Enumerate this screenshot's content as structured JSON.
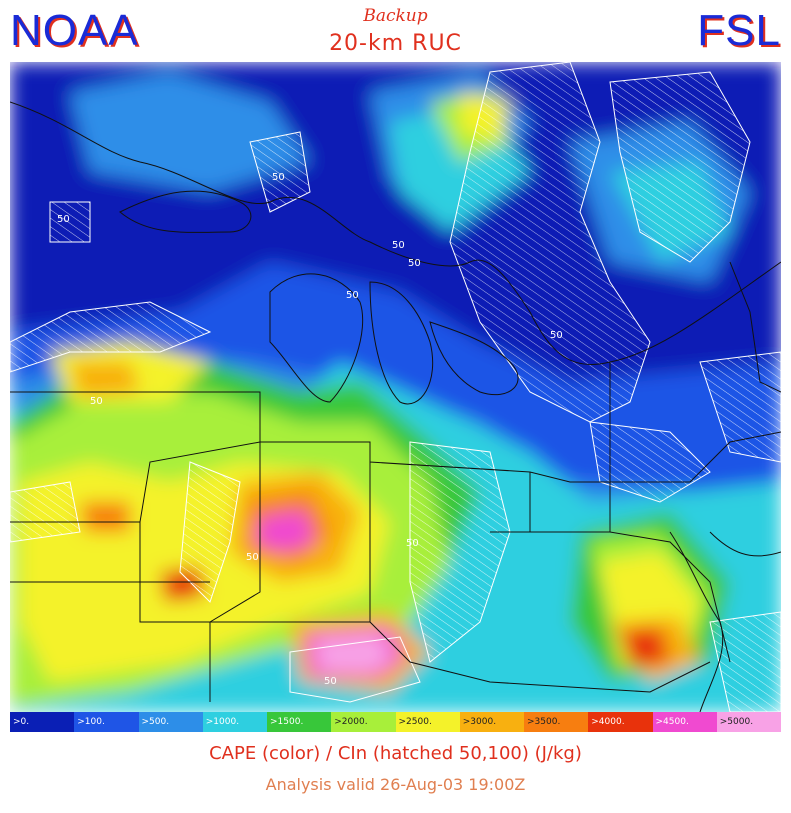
{
  "header": {
    "logo_left": "NOAA",
    "logo_right": "FSL",
    "subtitle_script": "Backup",
    "model_name": "20-km RUC"
  },
  "legend": {
    "bins": [
      {
        "label": ">0.",
        "color": "#0a1fb5"
      },
      {
        "label": ">100.",
        "color": "#1f55e6"
      },
      {
        "label": ">500.",
        "color": "#2d8ee8"
      },
      {
        "label": ">1000.",
        "color": "#2ecfe0"
      },
      {
        "label": ">1500.",
        "color": "#38c73a"
      },
      {
        "label": ">2000.",
        "color": "#a8ef3a"
      },
      {
        "label": ">2500.",
        "color": "#f4f22a"
      },
      {
        "label": ">3000.",
        "color": "#f8b010"
      },
      {
        "label": ">3500.",
        "color": "#f77e10"
      },
      {
        "label": ">4000.",
        "color": "#e8320c"
      },
      {
        "label": ">4500.",
        "color": "#f04ad0"
      },
      {
        "label": ">5000.",
        "color": "#f8a2e6"
      }
    ]
  },
  "map": {
    "contour_labels": [
      "50",
      "50",
      "50",
      "50",
      "50",
      "50",
      "50",
      "50",
      "50",
      "50"
    ]
  },
  "footer": {
    "title": "CAPE (color) / CIn (hatched 50,100)   (J/kg)",
    "valid": "Analysis valid 26-Aug-03 19:00Z"
  }
}
